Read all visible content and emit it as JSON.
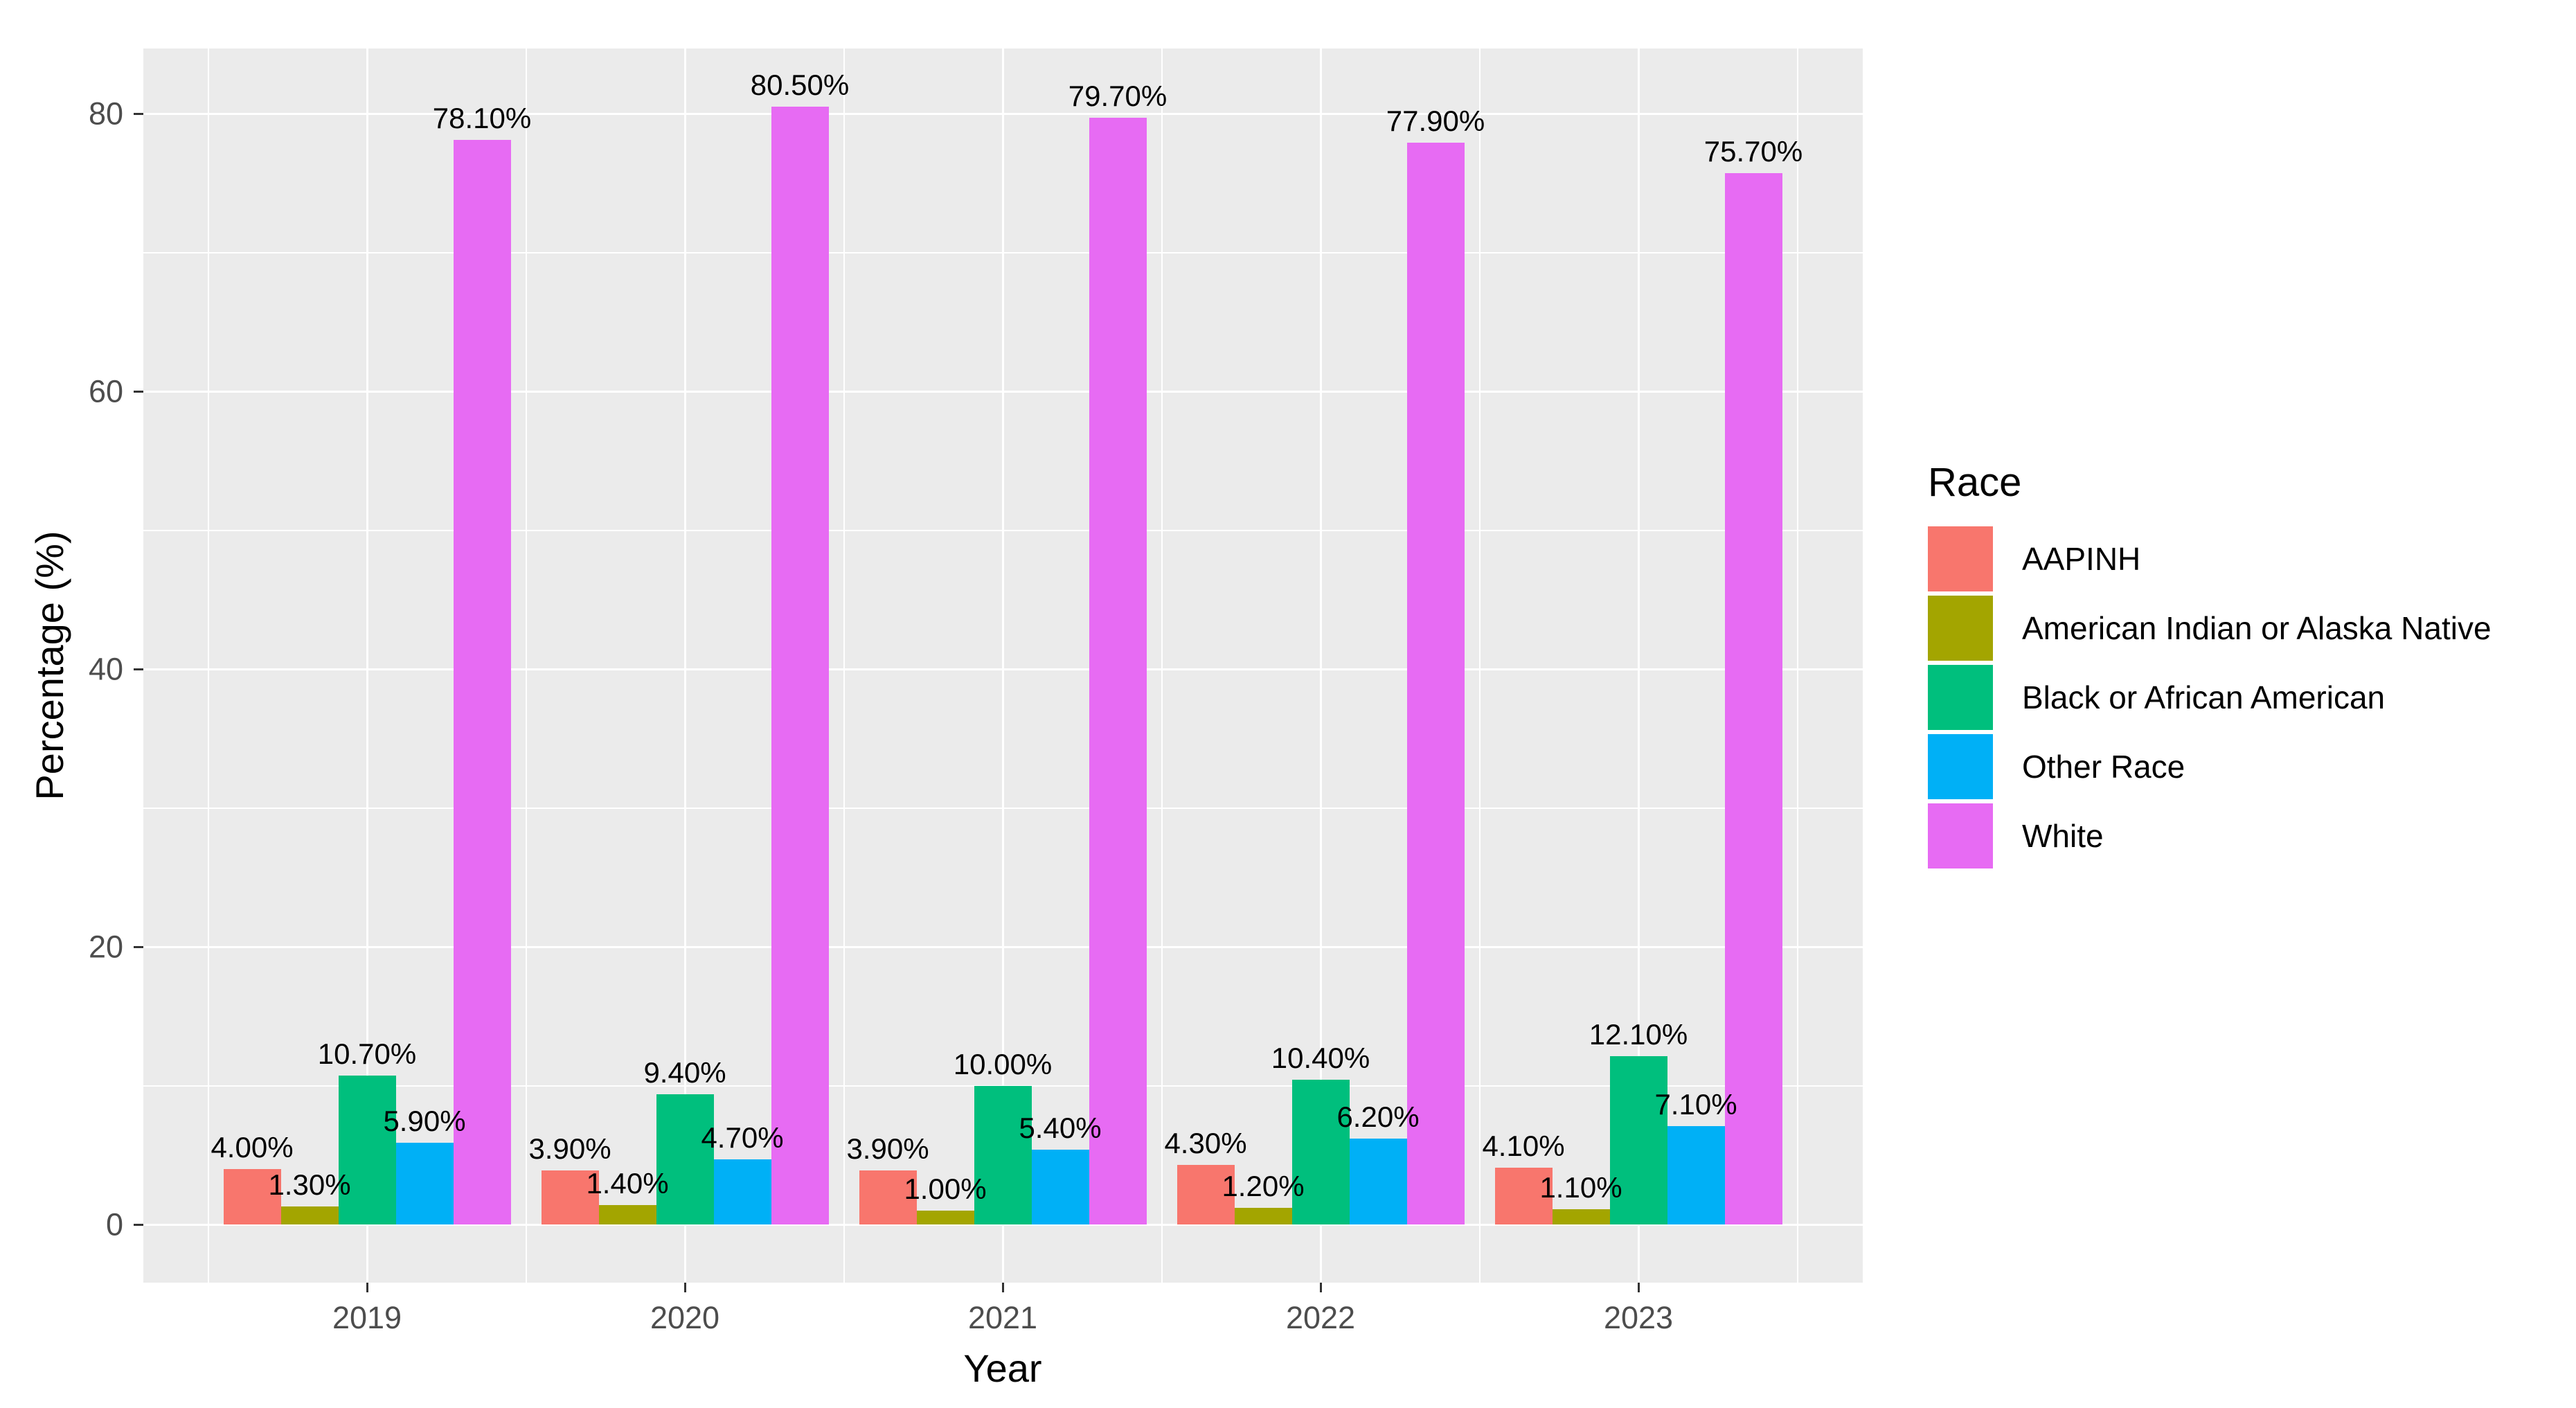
{
  "chart_data": {
    "type": "bar",
    "title": "",
    "xlabel": "Year",
    "ylabel": "Percentage (%)",
    "categories": [
      "2019",
      "2020",
      "2021",
      "2022",
      "2023"
    ],
    "series": [
      {
        "name": "AAPINH",
        "color": "#F8766D",
        "values": [
          4.0,
          3.9,
          3.9,
          4.3,
          4.1
        ],
        "labels": [
          "4.00%",
          "3.90%",
          "3.90%",
          "4.30%",
          "4.10%"
        ]
      },
      {
        "name": "American Indian or Alaska Native",
        "color": "#A3A500",
        "values": [
          1.3,
          1.4,
          1.0,
          1.2,
          1.1
        ],
        "labels": [
          "1.30%",
          "1.40%",
          "1.00%",
          "1.20%",
          "1.10%"
        ]
      },
      {
        "name": "Black or African American",
        "color": "#00BF7D",
        "values": [
          10.7,
          9.4,
          10.0,
          10.4,
          12.1
        ],
        "labels": [
          "10.70%",
          "9.40%",
          "10.00%",
          "10.40%",
          "12.10%"
        ]
      },
      {
        "name": "Other Race",
        "color": "#00B0F6",
        "values": [
          5.9,
          4.7,
          5.4,
          6.2,
          7.1
        ],
        "labels": [
          "5.90%",
          "4.70%",
          "5.40%",
          "6.20%",
          "7.10%"
        ]
      },
      {
        "name": "White",
        "color": "#E76BF3",
        "values": [
          78.1,
          80.5,
          79.7,
          77.9,
          75.7
        ],
        "labels": [
          "78.10%",
          "80.50%",
          "79.70%",
          "77.90%",
          "75.70%"
        ]
      }
    ],
    "y_axis": {
      "tick_labels": [
        "0",
        "20",
        "40",
        "60",
        "80"
      ],
      "tick_values": [
        0,
        20,
        40,
        60,
        80
      ],
      "minor_values": [
        10,
        30,
        50,
        70
      ],
      "range": [
        0,
        84.7
      ]
    },
    "legend": {
      "title": "Race",
      "position": "right"
    },
    "grid": true,
    "colors": {
      "panel_bg": "#EBEBEB",
      "grid": "#FFFFFF",
      "tick_mark": "#333333",
      "axis_text": "#4D4D4D",
      "title_text": "#000000",
      "background": "#FFFFFF"
    }
  }
}
